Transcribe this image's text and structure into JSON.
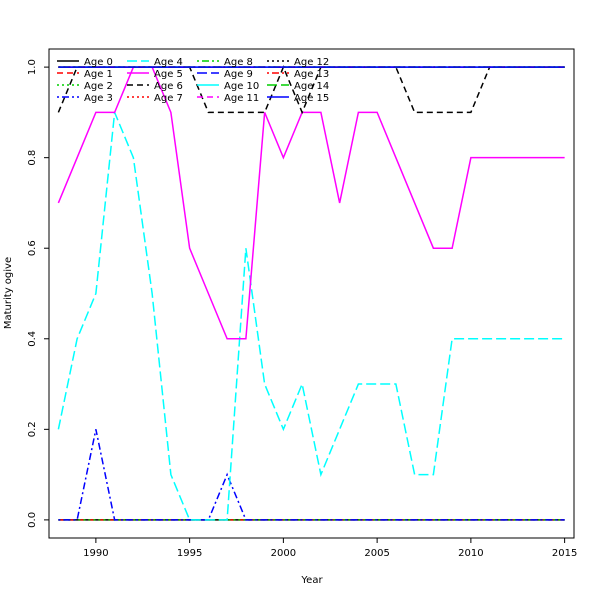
{
  "chart_data": {
    "type": "line",
    "xlabel": "Year",
    "ylabel": "Maturity ogive",
    "xlim": [
      1987.5,
      2015.5
    ],
    "ylim": [
      -0.04,
      1.04
    ],
    "x_ticks": [
      1990,
      1995,
      2000,
      2005,
      2010,
      2015
    ],
    "y_ticks": [
      0.0,
      0.2,
      0.4,
      0.6,
      0.8,
      1.0
    ],
    "x_tick_labels": [
      "1990",
      "1995",
      "2000",
      "2005",
      "2010",
      "2015"
    ],
    "y_tick_labels": [
      "0.0",
      "0.2",
      "0.4",
      "0.6",
      "0.8",
      "1.0"
    ],
    "legend_position": "top-left",
    "legend_columns": 5,
    "x": [
      1988,
      1989,
      1990,
      1991,
      1992,
      1993,
      1994,
      1995,
      1996,
      1997,
      1998,
      1999,
      2000,
      2001,
      2002,
      2003,
      2004,
      2005,
      2006,
      2007,
      2008,
      2009,
      2010,
      2011,
      2012,
      2013,
      2014,
      2015
    ],
    "series": [
      {
        "name": "Age 0",
        "color": "#000000",
        "dash": "solid",
        "values": [
          0,
          0,
          0,
          0,
          0,
          0,
          0,
          0,
          0,
          0,
          0,
          0,
          0,
          0,
          0,
          0,
          0,
          0,
          0,
          0,
          0,
          0,
          0,
          0,
          0,
          0,
          0,
          0
        ]
      },
      {
        "name": "Age 1",
        "color": "#ff0000",
        "dash": "dashed",
        "values": [
          0,
          0,
          0,
          0,
          0,
          0,
          0,
          0,
          0,
          0,
          0,
          0,
          0,
          0,
          0,
          0,
          0,
          0,
          0,
          0,
          0,
          0,
          0,
          0,
          0,
          0,
          0,
          0
        ]
      },
      {
        "name": "Age 2",
        "color": "#00cd00",
        "dash": "dotted",
        "values": [
          0,
          0,
          0,
          0,
          0,
          0,
          0,
          0,
          0,
          0,
          0,
          0,
          0,
          0,
          0,
          0,
          0,
          0,
          0,
          0,
          0,
          0,
          0,
          0,
          0,
          0,
          0,
          0
        ]
      },
      {
        "name": "Age 3",
        "color": "#0000ff",
        "dash": "dotdash",
        "values": [
          0,
          0,
          0.2,
          0,
          0,
          0,
          0,
          0,
          0,
          0.1,
          0,
          0,
          0,
          0,
          0,
          0,
          0,
          0,
          0,
          0,
          0,
          0,
          0,
          0,
          0,
          0,
          0,
          0
        ]
      },
      {
        "name": "Age 4",
        "color": "#00ffff",
        "dash": "longdash",
        "values": [
          0.2,
          0.4,
          0.5,
          0.9,
          0.8,
          0.5,
          0.1,
          0,
          0,
          0,
          0.6,
          0.3,
          0.2,
          0.3,
          0.1,
          0.2,
          0.3,
          0.3,
          0.3,
          0.1,
          0.1,
          0.4,
          0.4,
          0.4,
          0.4,
          0.4,
          0.4,
          0.4
        ]
      },
      {
        "name": "Age 5",
        "color": "#ff00ff",
        "dash": "solid",
        "values": [
          0.7,
          0.8,
          0.9,
          0.9,
          1,
          1,
          0.9,
          0.6,
          0.5,
          0.4,
          0.4,
          0.9,
          0.8,
          0.9,
          0.9,
          0.7,
          0.9,
          0.9,
          0.8,
          0.7,
          0.6,
          0.6,
          0.8,
          0.8,
          0.8,
          0.8,
          0.8,
          0.8
        ]
      },
      {
        "name": "Age 6",
        "color": "#000000",
        "dash": "dashed",
        "values": [
          0.9,
          1,
          1,
          1,
          1,
          1,
          1,
          1,
          0.9,
          0.9,
          0.9,
          0.9,
          1,
          0.9,
          1,
          1,
          1,
          1,
          1,
          0.9,
          0.9,
          0.9,
          0.9,
          1,
          1,
          1,
          1,
          1
        ]
      },
      {
        "name": "Age 7",
        "color": "#ff0000",
        "dash": "dotted",
        "values": [
          1,
          1,
          1,
          1,
          1,
          1,
          1,
          1,
          1,
          1,
          1,
          1,
          1,
          1,
          1,
          1,
          1,
          1,
          1,
          1,
          1,
          1,
          1,
          1,
          1,
          1,
          1,
          1
        ]
      },
      {
        "name": "Age 8",
        "color": "#00cd00",
        "dash": "dotdash",
        "values": [
          1,
          1,
          1,
          1,
          1,
          1,
          1,
          1,
          1,
          1,
          1,
          1,
          1,
          1,
          1,
          1,
          1,
          1,
          1,
          1,
          1,
          1,
          1,
          1,
          1,
          1,
          1,
          1
        ]
      },
      {
        "name": "Age 9",
        "color": "#0000ff",
        "dash": "longdash",
        "values": [
          1,
          1,
          1,
          1,
          1,
          1,
          1,
          1,
          1,
          1,
          1,
          1,
          1,
          1,
          1,
          1,
          1,
          1,
          1,
          1,
          1,
          1,
          1,
          1,
          1,
          1,
          1,
          1
        ]
      },
      {
        "name": "Age 10",
        "color": "#00ffff",
        "dash": "solid",
        "values": [
          1,
          1,
          1,
          1,
          1,
          1,
          1,
          1,
          1,
          1,
          1,
          1,
          1,
          1,
          1,
          1,
          1,
          1,
          1,
          1,
          1,
          1,
          1,
          1,
          1,
          1,
          1,
          1
        ]
      },
      {
        "name": "Age 11",
        "color": "#ff00ff",
        "dash": "dashed",
        "values": [
          1,
          1,
          1,
          1,
          1,
          1,
          1,
          1,
          1,
          1,
          1,
          1,
          1,
          1,
          1,
          1,
          1,
          1,
          1,
          1,
          1,
          1,
          1,
          1,
          1,
          1,
          1,
          1
        ]
      },
      {
        "name": "Age 12",
        "color": "#000000",
        "dash": "dotted",
        "values": [
          1,
          1,
          1,
          1,
          1,
          1,
          1,
          1,
          1,
          1,
          1,
          1,
          1,
          1,
          1,
          1,
          1,
          1,
          1,
          1,
          1,
          1,
          1,
          1,
          1,
          1,
          1,
          1
        ]
      },
      {
        "name": "Age 13",
        "color": "#ff0000",
        "dash": "dotdash",
        "values": [
          1,
          1,
          1,
          1,
          1,
          1,
          1,
          1,
          1,
          1,
          1,
          1,
          1,
          1,
          1,
          1,
          1,
          1,
          1,
          1,
          1,
          1,
          1,
          1,
          1,
          1,
          1,
          1
        ]
      },
      {
        "name": "Age 14",
        "color": "#00cd00",
        "dash": "longdash",
        "values": [
          1,
          1,
          1,
          1,
          1,
          1,
          1,
          1,
          1,
          1,
          1,
          1,
          1,
          1,
          1,
          1,
          1,
          1,
          1,
          1,
          1,
          1,
          1,
          1,
          1,
          1,
          1,
          1
        ]
      },
      {
        "name": "Age 15",
        "color": "#0000ff",
        "dash": "solid",
        "values": [
          1,
          1,
          1,
          1,
          1,
          1,
          1,
          1,
          1,
          1,
          1,
          1,
          1,
          1,
          1,
          1,
          1,
          1,
          1,
          1,
          1,
          1,
          1,
          1,
          1,
          1,
          1,
          1
        ]
      }
    ]
  }
}
